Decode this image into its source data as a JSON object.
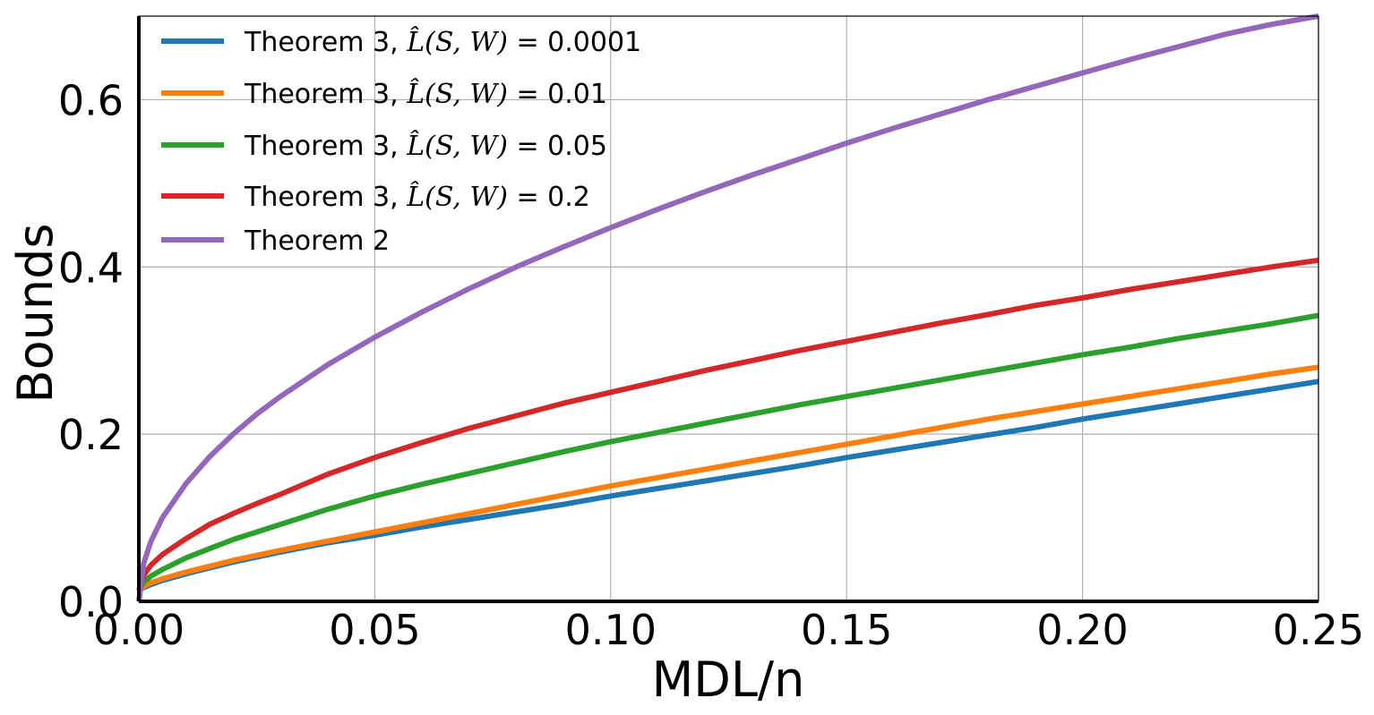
{
  "chart_data": {
    "type": "line",
    "xlabel": "MDL/n",
    "ylabel": "Bounds",
    "xlim": [
      0.0,
      0.25
    ],
    "ylim": [
      0.0,
      0.7
    ],
    "grid": true,
    "legend_position": "top-left",
    "x_ticks": [
      {
        "value": 0.0,
        "label": "0.00"
      },
      {
        "value": 0.05,
        "label": "0.05"
      },
      {
        "value": 0.1,
        "label": "0.10"
      },
      {
        "value": 0.15,
        "label": "0.15"
      },
      {
        "value": 0.2,
        "label": "0.20"
      },
      {
        "value": 0.25,
        "label": "0.25"
      }
    ],
    "y_ticks": [
      {
        "value": 0.0,
        "label": "0.0"
      },
      {
        "value": 0.2,
        "label": "0.2"
      },
      {
        "value": 0.4,
        "label": "0.4"
      },
      {
        "value": 0.6,
        "label": "0.6"
      }
    ],
    "x": [
      0.0,
      0.001,
      0.0025,
      0.005,
      0.01,
      0.015,
      0.02,
      0.025,
      0.03,
      0.04,
      0.05,
      0.06,
      0.07,
      0.08,
      0.09,
      0.1,
      0.11,
      0.12,
      0.13,
      0.14,
      0.15,
      0.16,
      0.17,
      0.18,
      0.19,
      0.2,
      0.21,
      0.22,
      0.23,
      0.24,
      0.25
    ],
    "series": [
      {
        "name": "Theorem 3, L̂(S,W) = 0.0001",
        "legend_prefix": "Theorem 3, ",
        "legend_value": "= 0.0001",
        "color": "#1f77b4",
        "values": [
          0.013,
          0.0165,
          0.02,
          0.025,
          0.033,
          0.04,
          0.047,
          0.053,
          0.059,
          0.07,
          0.079,
          0.089,
          0.098,
          0.107,
          0.116,
          0.126,
          0.135,
          0.144,
          0.153,
          0.162,
          0.172,
          0.181,
          0.19,
          0.199,
          0.208,
          0.218,
          0.227,
          0.236,
          0.245,
          0.254,
          0.263
        ]
      },
      {
        "name": "Theorem 3, L̂(S,W) = 0.01",
        "legend_prefix": "Theorem 3, ",
        "legend_value": "= 0.01",
        "color": "#ff7f0e",
        "values": [
          0.013,
          0.018,
          0.022,
          0.027,
          0.035,
          0.042,
          0.049,
          0.055,
          0.061,
          0.072,
          0.083,
          0.094,
          0.105,
          0.116,
          0.127,
          0.138,
          0.148,
          0.158,
          0.168,
          0.178,
          0.188,
          0.198,
          0.208,
          0.218,
          0.227,
          0.236,
          0.245,
          0.254,
          0.263,
          0.272,
          0.28
        ]
      },
      {
        "name": "Theorem 3, L̂(S,W) = 0.05",
        "legend_prefix": "Theorem 3, ",
        "legend_value": "= 0.05",
        "color": "#2ca02c",
        "values": [
          0.013,
          0.023,
          0.03,
          0.038,
          0.052,
          0.063,
          0.074,
          0.083,
          0.092,
          0.11,
          0.126,
          0.14,
          0.153,
          0.166,
          0.179,
          0.191,
          0.202,
          0.213,
          0.224,
          0.235,
          0.245,
          0.255,
          0.265,
          0.275,
          0.285,
          0.295,
          0.304,
          0.314,
          0.323,
          0.332,
          0.342
        ]
      },
      {
        "name": "Theorem 3, L̂(S,W) = 0.2",
        "legend_prefix": "Theorem 3, ",
        "legend_value": "= 0.2",
        "color": "#d62728",
        "values": [
          0.013,
          0.031,
          0.043,
          0.056,
          0.075,
          0.092,
          0.105,
          0.117,
          0.128,
          0.152,
          0.172,
          0.19,
          0.207,
          0.222,
          0.237,
          0.25,
          0.263,
          0.276,
          0.288,
          0.3,
          0.311,
          0.322,
          0.333,
          0.343,
          0.354,
          0.363,
          0.373,
          0.382,
          0.391,
          0.4,
          0.408
        ]
      },
      {
        "name": "Theorem 2",
        "legend_prefix": "Theorem 2",
        "legend_value": "",
        "color": "#9467bd",
        "values": [
          0.0,
          0.045,
          0.071,
          0.1,
          0.141,
          0.173,
          0.2,
          0.224,
          0.245,
          0.283,
          0.316,
          0.346,
          0.374,
          0.4,
          0.424,
          0.447,
          0.469,
          0.49,
          0.51,
          0.529,
          0.548,
          0.566,
          0.583,
          0.6,
          0.616,
          0.632,
          0.648,
          0.663,
          0.678,
          0.69,
          0.7
        ]
      }
    ]
  }
}
